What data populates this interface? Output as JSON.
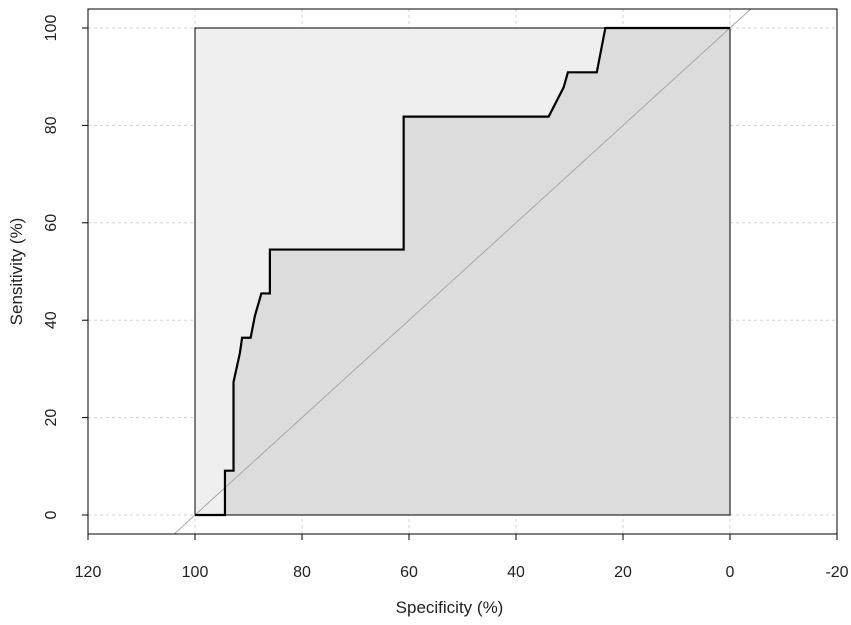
{
  "chart_data": {
    "type": "line",
    "title": "",
    "xlabel": "Specificity (%)",
    "ylabel": "Sensitivity (%)",
    "xlim": [
      120,
      -20
    ],
    "ylim": [
      0,
      100
    ],
    "x_reversed": true,
    "grid": true,
    "x_ticks": [
      {
        "value": 120,
        "label": "120"
      },
      {
        "value": 100,
        "label": "100"
      },
      {
        "value": 80,
        "label": "80"
      },
      {
        "value": 60,
        "label": "60"
      },
      {
        "value": 40,
        "label": "40"
      },
      {
        "value": 20,
        "label": "20"
      },
      {
        "value": 0,
        "label": "0"
      },
      {
        "value": -20,
        "label": "-20"
      }
    ],
    "y_ticks": [
      {
        "value": 0,
        "label": "0"
      },
      {
        "value": 20,
        "label": "20"
      },
      {
        "value": 40,
        "label": "40"
      },
      {
        "value": 60,
        "label": "60"
      },
      {
        "value": 80,
        "label": "80"
      },
      {
        "value": 100,
        "label": "100"
      }
    ],
    "series": [
      {
        "points": [
          [
            100,
            0
          ],
          [
            94.4,
            0
          ],
          [
            94.4,
            9.1
          ],
          [
            92.8,
            9.1
          ],
          [
            92.8,
            27.3
          ],
          [
            91.6,
            33.3
          ],
          [
            91.2,
            36.4
          ],
          [
            89.6,
            36.4
          ],
          [
            88.8,
            40.9
          ],
          [
            87.6,
            45.5
          ],
          [
            86.0,
            45.5
          ],
          [
            86.0,
            54.5
          ],
          [
            61.0,
            54.5
          ],
          [
            61.0,
            81.8
          ],
          [
            33.9,
            81.8
          ],
          [
            31.1,
            87.8
          ],
          [
            30.3,
            90.9
          ],
          [
            24.9,
            90.9
          ],
          [
            23.3,
            100
          ],
          [
            0,
            100
          ]
        ]
      }
    ],
    "diagonal": {
      "from": [
        100,
        0
      ],
      "to": [
        0,
        100
      ]
    },
    "colors": {
      "curve": "#000000",
      "auc_fill": "#dcdcdc",
      "box_fill": "#efefef",
      "diagonal": "#a8a8a8",
      "grid": "#d3d3d3"
    }
  }
}
